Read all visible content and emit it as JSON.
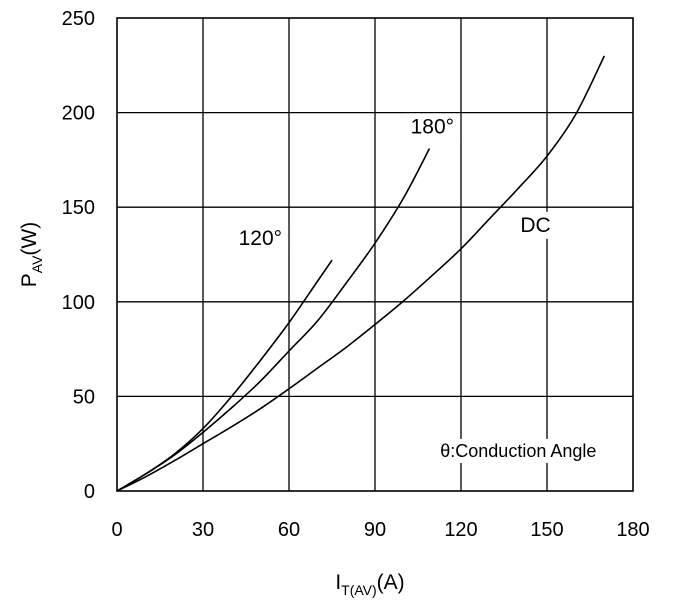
{
  "chart_data": {
    "type": "line",
    "xlabel_main": "I",
    "xlabel_sub": "T(AV)",
    "xlabel_unit": "(A)",
    "ylabel_main": "P",
    "ylabel_sub": "AV",
    "ylabel_unit": "(W)",
    "xlim": [
      0,
      180
    ],
    "ylim": [
      0,
      250
    ],
    "xticks": [
      0,
      30,
      60,
      90,
      120,
      150,
      180
    ],
    "yticks": [
      0,
      50,
      100,
      150,
      200,
      250
    ],
    "xtick_labels": [
      "0",
      "30",
      "60",
      "90",
      "120",
      "150",
      "180"
    ],
    "ytick_labels": [
      "0",
      "50",
      "100",
      "150",
      "200",
      "250"
    ],
    "grid": true,
    "series": [
      {
        "name": "120°",
        "x": [
          0,
          10,
          20,
          30,
          40,
          50,
          60,
          70,
          75
        ],
        "y": [
          0,
          9,
          19.5,
          33,
          50,
          69,
          89,
          111,
          122
        ]
      },
      {
        "name": "180°",
        "x": [
          0,
          10,
          20,
          30,
          40,
          50,
          60,
          70,
          80,
          90,
          100,
          109
        ],
        "y": [
          0,
          9,
          19,
          31,
          44,
          58,
          74,
          90,
          110,
          131,
          155,
          181
        ]
      },
      {
        "name": "DC",
        "x": [
          0,
          10,
          20,
          30,
          40,
          50,
          60,
          70,
          80,
          90,
          100,
          110,
          120,
          130,
          140,
          150,
          160,
          170
        ],
        "y": [
          0,
          7.5,
          16,
          25,
          34,
          43.5,
          54,
          65,
          76,
          88,
          100.5,
          114,
          128,
          144,
          160,
          177,
          199,
          230
        ]
      }
    ],
    "annotations": {
      "curve_120": "120°",
      "curve_180": "180°",
      "curve_dc": "DC",
      "note": "θ:Conduction Angle"
    }
  }
}
